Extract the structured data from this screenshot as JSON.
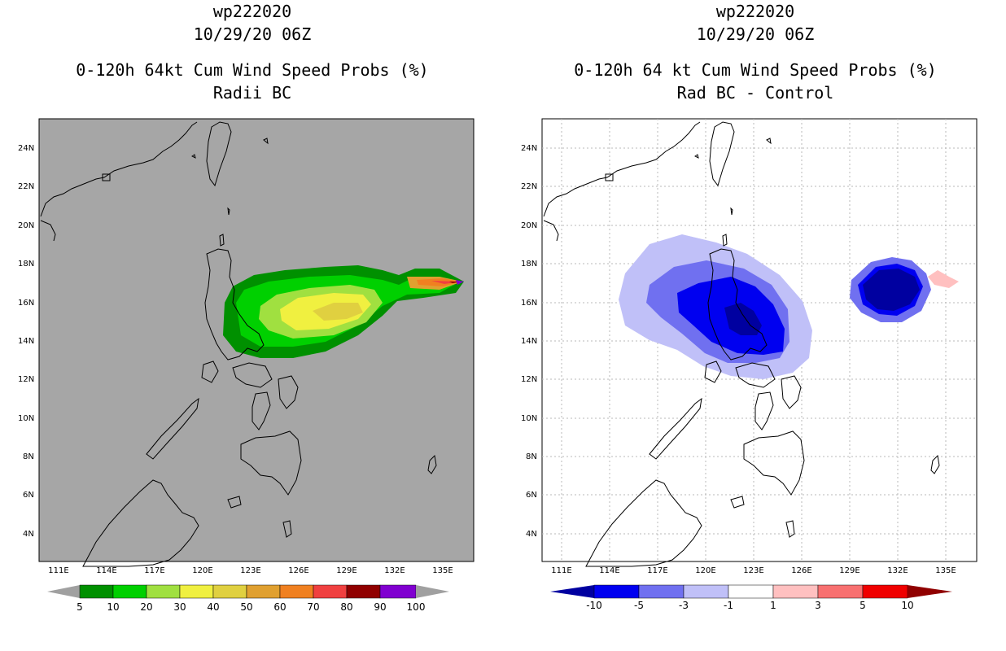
{
  "panels": [
    {
      "storm": "wp222020",
      "datetime": "10/29/20 06Z",
      "title": "0-120h 64kt Cum Wind Speed Probs (%)",
      "subtitle": "Radii BC",
      "lon_labels": [
        "111E",
        "114E",
        "117E",
        "120E",
        "123E",
        "126E",
        "129E",
        "132E",
        "135E"
      ],
      "lat_labels": [
        "24N",
        "22N",
        "20N",
        "18N",
        "16N",
        "14N",
        "12N",
        "10N",
        "8N",
        "6N",
        "4N"
      ],
      "colorbar_labels": [
        "5",
        "10",
        "20",
        "30",
        "40",
        "50",
        "60",
        "70",
        "80",
        "90",
        "100"
      ],
      "colorbar_colors": [
        "#009000",
        "#00d000",
        "#a0e040",
        "#f0f040",
        "#e0d040",
        "#e0a030",
        "#f08020",
        "#f04040",
        "#900000",
        "#8000d0"
      ]
    },
    {
      "storm": "wp222020",
      "datetime": "10/29/20 06Z",
      "title": "0-120h 64 kt Cum Wind Speed Probs (%)",
      "subtitle": "Rad BC - Control",
      "lon_labels": [
        "111E",
        "114E",
        "117E",
        "120E",
        "123E",
        "126E",
        "129E",
        "132E",
        "135E"
      ],
      "lat_labels": [
        "24N",
        "22N",
        "20N",
        "18N",
        "16N",
        "14N",
        "12N",
        "10N",
        "8N",
        "6N",
        "4N"
      ],
      "colorbar_labels": [
        "-10",
        "-5",
        "-3",
        "-1",
        "1",
        "3",
        "5",
        "10"
      ],
      "colorbar_colors": [
        "#0000a0",
        "#0000f0",
        "#7070f0",
        "#c0c0f8",
        "#ffffff",
        "#ffc0c0",
        "#f87070",
        "#f00000",
        "#900000"
      ]
    }
  ]
}
